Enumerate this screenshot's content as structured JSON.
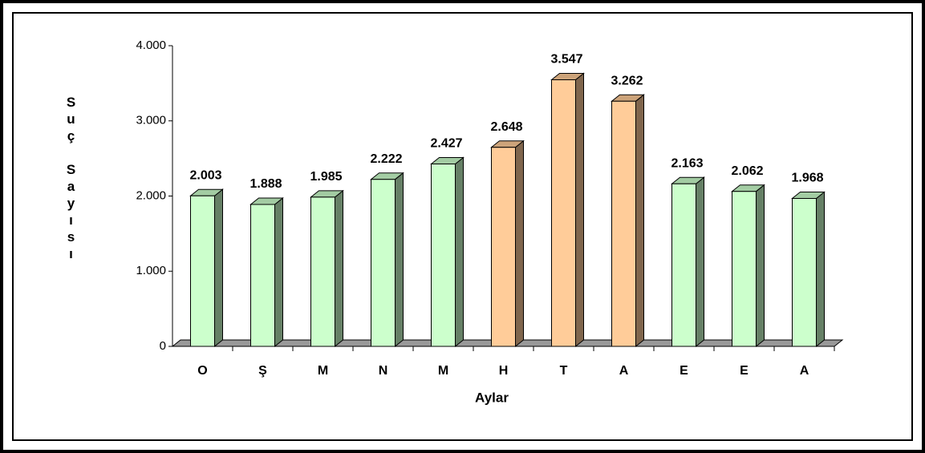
{
  "chart_data": {
    "type": "bar3d",
    "y_label": "Suç Sayısı",
    "x_label": "Aylar",
    "categories": [
      "O",
      "Ş",
      "M",
      "N",
      "M",
      "H",
      "T",
      "A",
      "E",
      "E",
      "A"
    ],
    "values": [
      2003,
      1888,
      1985,
      2222,
      2427,
      2648,
      3547,
      3262,
      2163,
      2062,
      1968
    ],
    "value_labels": [
      "2.003",
      "1.888",
      "1.985",
      "2.222",
      "2.427",
      "2.648",
      "3.547",
      "3.262",
      "2.163",
      "2.062",
      "1.968"
    ],
    "colors": [
      "#ccffcc",
      "#ccffcc",
      "#ccffcc",
      "#ccffcc",
      "#ccffcc",
      "#ffcc99",
      "#ffcc99",
      "#ffcc99",
      "#ccffcc",
      "#ccffcc",
      "#ccffcc"
    ],
    "ylim": [
      0,
      4000
    ],
    "yticks": [
      0,
      {
        "value": 1000,
        "label": "1.000"
      },
      {
        "value": 2000,
        "label": "2.000"
      },
      {
        "value": 3000,
        "label": "3.000"
      },
      {
        "value": 4000,
        "label": "4.000"
      }
    ]
  }
}
